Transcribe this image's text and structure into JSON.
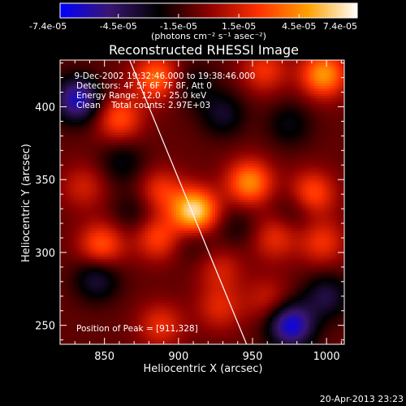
{
  "colorbar": {
    "tick_labels": [
      "-7.4e-05",
      "-4.5e-05",
      "-1.5e-05",
      "1.5e-05",
      "4.5e-05",
      "7.4e-05"
    ],
    "tick_values": [
      -7.4e-05,
      -4.5e-05,
      -1.5e-05,
      1.5e-05,
      4.5e-05,
      7.4e-05
    ],
    "range": [
      -7.4e-05,
      7.4e-05
    ],
    "units_label": "(photons cm⁻² s⁻¹ asec⁻²)",
    "colors": [
      "#0000ff",
      "#3a1670",
      "#000000",
      "#8b0000",
      "#ff3000",
      "#ffa000",
      "#ffffff"
    ]
  },
  "chart_data": {
    "type": "heatmap",
    "title": "Reconstructed RHESSI Image",
    "xlabel": "Heliocentric X (arcsec)",
    "ylabel": "Heliocentric Y (arcsec)",
    "xlim": [
      820,
      1012
    ],
    "ylim": [
      237,
      432
    ],
    "x_ticks": [
      850,
      900,
      950,
      1000
    ],
    "y_ticks": [
      250,
      300,
      350,
      400
    ],
    "annotations": [
      " 9-Dec-2002 19:32:46.000 to 19:38:46.000",
      "Detectors: 4F 5F 6F 7F 8F, Att 0",
      "Energy Range: 12.0 - 25.0 keV",
      "Clean    Total counts: 2.97E+03"
    ],
    "peak_label": "Position of Peak = [911,328]",
    "peak": {
      "x": 911,
      "y": 328,
      "value": 7.4e-05
    },
    "limb_line": [
      {
        "x": 867,
        "y": 432
      },
      {
        "x": 946,
        "y": 237
      }
    ],
    "sources": [
      {
        "x": 911,
        "y": 328,
        "value": 7.4e-05
      },
      {
        "x": 885,
        "y": 420,
        "value": 4.5e-05
      },
      {
        "x": 860,
        "y": 392,
        "value": 3.8e-05
      },
      {
        "x": 998,
        "y": 422,
        "value": 5.5e-05
      },
      {
        "x": 958,
        "y": 425,
        "value": 3e-05
      },
      {
        "x": 948,
        "y": 348,
        "value": 5.2e-05
      },
      {
        "x": 990,
        "y": 340,
        "value": 4.2e-05
      },
      {
        "x": 965,
        "y": 310,
        "value": 2.8e-05
      },
      {
        "x": 997,
        "y": 307,
        "value": 3e-05
      },
      {
        "x": 848,
        "y": 305,
        "value": 4e-05
      },
      {
        "x": 886,
        "y": 310,
        "value": 3.5e-05
      },
      {
        "x": 888,
        "y": 342,
        "value": 3e-05
      },
      {
        "x": 836,
        "y": 345,
        "value": 2.2e-05
      },
      {
        "x": 888,
        "y": 250,
        "value": 2.8e-05
      },
      {
        "x": 928,
        "y": 262,
        "value": 2.5e-05
      },
      {
        "x": 928,
        "y": 288,
        "value": 2.2e-05
      },
      {
        "x": 960,
        "y": 268,
        "value": 2e-05
      },
      {
        "x": 832,
        "y": 405,
        "value": -5.5e-05
      },
      {
        "x": 976,
        "y": 250,
        "value": -6e-05
      },
      {
        "x": 845,
        "y": 282,
        "value": -3e-05
      },
      {
        "x": 1000,
        "y": 270,
        "value": -3e-05
      },
      {
        "x": 930,
        "y": 395,
        "value": -2.5e-05
      },
      {
        "x": 975,
        "y": 388,
        "value": -2e-05
      },
      {
        "x": 862,
        "y": 362,
        "value": -2e-05
      },
      {
        "x": 980,
        "y": 330,
        "value": -1.8e-05
      },
      {
        "x": 910,
        "y": 308,
        "value": -1.5e-05
      },
      {
        "x": 870,
        "y": 328,
        "value": -1.6e-05
      },
      {
        "x": 940,
        "y": 318,
        "value": -1.4e-05
      },
      {
        "x": 910,
        "y": 415,
        "value": -1.8e-05
      }
    ]
  },
  "timestamp": "20-Apr-2013 23:23"
}
